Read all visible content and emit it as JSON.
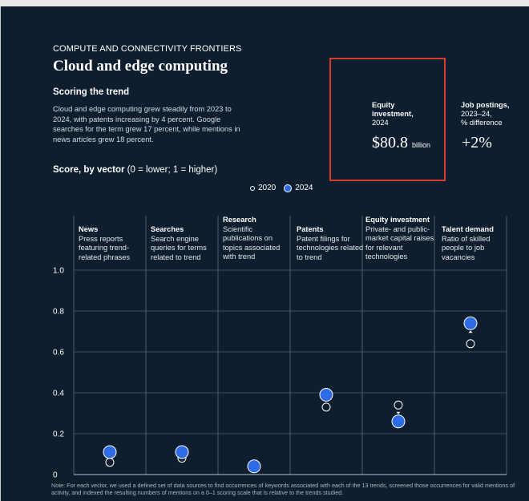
{
  "header": {
    "kicker": "COMPUTE AND CONNECTIVITY FRONTIERS",
    "title": "Cloud and edge computing"
  },
  "scoring": {
    "heading": "Scoring the trend",
    "summary": "Cloud and edge computing grew steadily from 2023 to 2024, with patents increasing by 4 percent. Google searches for the term grew 17 percent, while mentions in news articles grew 18 percent."
  },
  "stats": {
    "equity": {
      "label_bold": "Equity investment,",
      "label_sub": "2024",
      "value": "$80.8",
      "unit": "billion"
    },
    "jobs": {
      "label_bold": "Job postings,",
      "label_sub1": "2023–24,",
      "label_sub2": "% difference",
      "value": "+2%"
    }
  },
  "score_title": {
    "bold": "Score, by vector",
    "rest": " (0 = lower; 1 = higher)"
  },
  "legend": {
    "y2020": "2020",
    "y2024": "2024"
  },
  "categories": [
    {
      "name": "News",
      "desc": "Press reports featuring trend-related phrases"
    },
    {
      "name": "Searches",
      "desc": "Search engine queries for terms related to trend"
    },
    {
      "name": "Research",
      "desc": "Scientific publications on topics associated with trend"
    },
    {
      "name": "Patents",
      "desc": "Patent filings for technologies related to trend"
    },
    {
      "name": "Equity investment",
      "desc": "Private- and public-market capital raises for relevant technologies"
    },
    {
      "name": "Talent demand",
      "desc": "Ratio of skilled people to job vacancies"
    }
  ],
  "chart_data": {
    "type": "scatter",
    "categories": [
      "News",
      "Searches",
      "Research",
      "Patents",
      "Equity investment",
      "Talent demand"
    ],
    "series": [
      {
        "name": "2020",
        "values": [
          0.06,
          0.08,
          0.03,
          0.33,
          0.34,
          0.64
        ]
      },
      {
        "name": "2024",
        "values": [
          0.11,
          0.11,
          0.04,
          0.39,
          0.26,
          0.74
        ]
      }
    ],
    "ylim": [
      0,
      1.0
    ],
    "yticks": [
      "0",
      "0.2",
      "0.4",
      "0.6",
      "0.8",
      "1.0"
    ],
    "grid": true,
    "colors": {
      "y2020": "#ffffff",
      "y2024": "#2e6be6"
    }
  },
  "note": "Note: For each vector, we used a defined set of data sources to find occurrences of keywords associated with each of the 13 trends, screened those occurrences for valid mentions of activity, and indexed the resulting numbers of mentions on a 0–1 scoring scale that is relative to the trends studied."
}
